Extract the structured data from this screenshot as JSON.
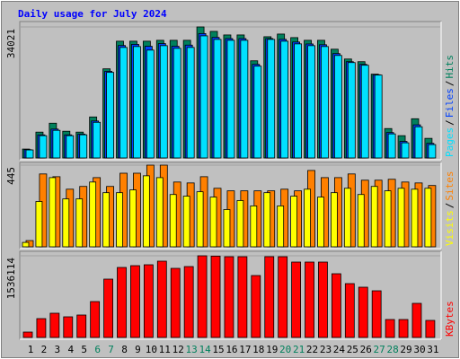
{
  "title": "Daily usage for July 2024",
  "legend_separator": "/",
  "categories": [
    "1",
    "2",
    "3",
    "4",
    "5",
    "6",
    "7",
    "8",
    "9",
    "10",
    "11",
    "12",
    "13",
    "14",
    "15",
    "16",
    "17",
    "18",
    "19",
    "20",
    "21",
    "22",
    "23",
    "24",
    "25",
    "26",
    "27",
    "28",
    "29",
    "30",
    "31"
  ],
  "category_colors": [
    "#000000",
    "#000000",
    "#000000",
    "#000000",
    "#000000",
    "#00805c",
    "#00805c",
    "#000000",
    "#000000",
    "#000000",
    "#000000",
    "#000000",
    "#00805c",
    "#00805c",
    "#000000",
    "#000000",
    "#000000",
    "#000000",
    "#000000",
    "#00805c",
    "#00805c",
    "#000000",
    "#000000",
    "#000000",
    "#000000",
    "#000000",
    "#00805c",
    "#00805c",
    "#000000",
    "#000000",
    "#000000"
  ],
  "chart_data": [
    {
      "type": "bar",
      "ylim": [
        0,
        34021
      ],
      "yticks": [
        34021
      ],
      "series": [
        {
          "name": "Hits",
          "color": "#00805c",
          "values": [
            2314,
            6712,
            9026,
            6943,
            6712,
            10646,
            23143,
            30318,
            30318,
            30318,
            30549,
            30549,
            30549,
            34021,
            32864,
            31938,
            31938,
            25226,
            31475,
            32169,
            31244,
            30549,
            30549,
            28235,
            25689,
            24995,
            21755,
            7637,
            5786,
            10183,
            5092
          ]
        },
        {
          "name": "Files",
          "color": "#0040ff",
          "values": [
            2150,
            6000,
            7500,
            6000,
            6200,
            9600,
            22500,
            29200,
            29500,
            29000,
            29700,
            29000,
            29300,
            32300,
            31300,
            31000,
            31000,
            24300,
            31000,
            30800,
            30100,
            29600,
            29400,
            27100,
            25000,
            24300,
            21600,
            6600,
            4300,
            8600,
            3800
          ]
        },
        {
          "name": "Pages",
          "color": "#00e0ff",
          "values": [
            2083,
            5786,
            7174,
            5786,
            6017,
            9257,
            22217,
            28697,
            28929,
            28003,
            29160,
            28466,
            28697,
            31706,
            30780,
            30549,
            30549,
            23837,
            30780,
            30317,
            29623,
            29160,
            28929,
            26614,
            24763,
            24069,
            21523,
            6249,
            3934,
            8100,
            3471
          ]
        }
      ]
    },
    {
      "type": "bar",
      "ylim": [
        0,
        445
      ],
      "yticks": [
        445
      ],
      "series": [
        {
          "name": "Sites",
          "color": "#ff8000",
          "values": [
            34,
            397,
            382,
            314,
            329,
            377,
            329,
            401,
            401,
            445,
            445,
            353,
            348,
            382,
            319,
            305,
            305,
            305,
            305,
            314,
            305,
            416,
            377,
            377,
            397,
            363,
            363,
            368,
            353,
            348,
            334
          ]
        },
        {
          "name": "Visits",
          "color": "#ffff00",
          "values": [
            24,
            247,
            377,
            261,
            261,
            353,
            295,
            295,
            310,
            387,
            377,
            285,
            276,
            300,
            271,
            203,
            252,
            223,
            295,
            223,
            276,
            314,
            271,
            295,
            319,
            285,
            329,
            305,
            319,
            314,
            319
          ]
        }
      ]
    },
    {
      "type": "bar",
      "ylim": [
        0,
        1536114
      ],
      "yticks": [
        1536114
      ],
      "series": [
        {
          "name": "KBytes",
          "color": "#ff0000",
          "values": [
            101281,
            354486,
            455768,
            388247,
            422007,
            675214,
            1097222,
            1316667,
            1350427,
            1367307,
            1434828,
            1299787,
            1333548,
            1536114,
            1530000,
            1519234,
            1519234,
            1164743,
            1520000,
            1519234,
            1417948,
            1417948,
            1417948,
            1198504,
            1012823,
            945301,
            877780,
            337606,
            337606,
            641453,
            320726
          ]
        }
      ]
    }
  ]
}
